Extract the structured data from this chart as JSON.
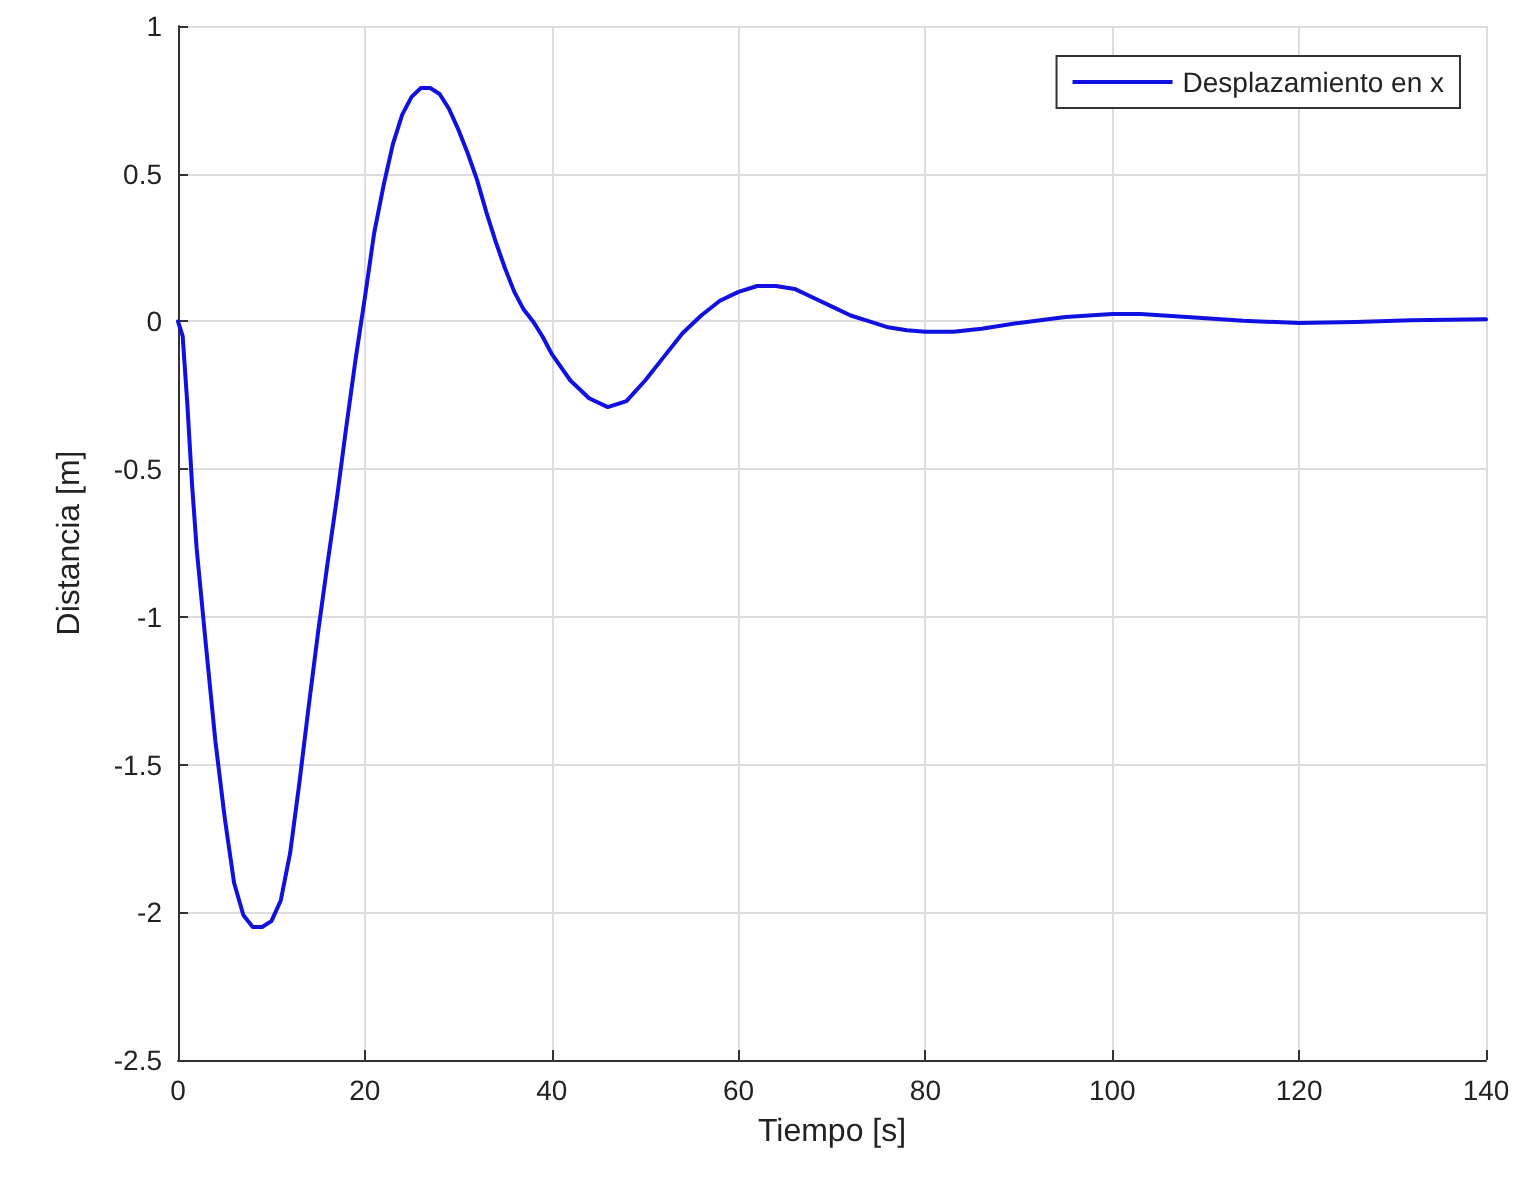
{
  "chart_data": {
    "type": "line",
    "xlabel": "Tiempo [s]",
    "ylabel": "Distancia [m]",
    "xlim": [
      0,
      140
    ],
    "xticks": [
      0,
      20,
      40,
      60,
      80,
      100,
      120,
      140
    ],
    "ylim": [
      -2.5,
      1
    ],
    "yticks": [
      -2.5,
      -2,
      -1.5,
      -1,
      -0.5,
      0,
      0.5,
      1
    ],
    "grid": true,
    "legend": "top right",
    "marker": "none",
    "line_style": "solid",
    "series": [
      {
        "name": "Desplazamiento en x",
        "color": "#1010e0",
        "x": [
          0,
          0.5,
          1,
          1.5,
          2,
          3,
          4,
          5,
          6,
          7,
          8,
          9,
          10,
          11,
          12,
          13,
          14,
          15,
          16,
          17,
          18,
          19,
          20,
          21,
          22,
          23,
          24,
          25,
          26,
          27,
          28,
          29,
          30,
          31,
          32,
          33,
          34,
          35,
          36,
          37,
          38,
          39,
          40,
          42,
          44,
          46,
          48,
          50,
          52,
          54,
          56,
          58,
          60,
          62,
          64,
          66,
          68,
          70,
          72,
          74,
          76,
          78,
          80,
          83,
          86,
          90,
          95,
          100,
          103,
          108,
          114,
          120,
          126,
          132,
          140
        ],
        "values": [
          0,
          -0.05,
          -0.28,
          -0.55,
          -0.77,
          -1.1,
          -1.42,
          -1.68,
          -1.9,
          -2.01,
          -2.05,
          -2.05,
          -2.03,
          -1.96,
          -1.8,
          -1.56,
          -1.3,
          -1.05,
          -0.82,
          -0.6,
          -0.36,
          -0.13,
          0.08,
          0.3,
          0.46,
          0.6,
          0.7,
          0.76,
          0.79,
          0.79,
          0.77,
          0.72,
          0.65,
          0.57,
          0.48,
          0.37,
          0.27,
          0.18,
          0.1,
          0.04,
          0,
          -0.05,
          -0.11,
          -0.2,
          -0.26,
          -0.29,
          -0.27,
          -0.2,
          -0.12,
          -0.04,
          0.02,
          0.07,
          0.1,
          0.12,
          0.12,
          0.11,
          0.08,
          0.05,
          0.02,
          0,
          -0.02,
          -0.03,
          -0.035,
          -0.035,
          -0.025,
          -0.005,
          0.015,
          0.025,
          0.025,
          0.015,
          0.002,
          -0.005,
          -0.002,
          0.004,
          0.007
        ]
      }
    ]
  }
}
